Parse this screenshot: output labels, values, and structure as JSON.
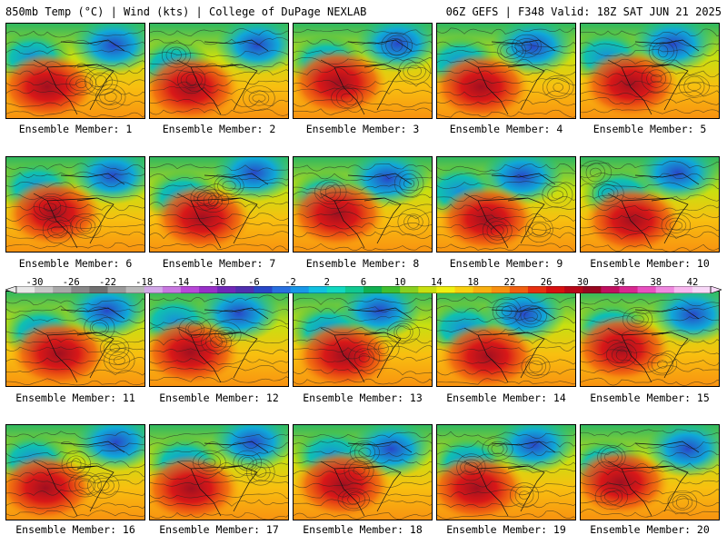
{
  "header": {
    "left_title": "850mb Temp (°C) | Wind (kts) | College of DuPage NEXLAB",
    "right_title": "06Z GEFS | F348 Valid: 18Z SAT JUN 21 2025"
  },
  "members": [
    {
      "label": "Ensemble Member: 1"
    },
    {
      "label": "Ensemble Member: 2"
    },
    {
      "label": "Ensemble Member: 3"
    },
    {
      "label": "Ensemble Member: 4"
    },
    {
      "label": "Ensemble Member: 5"
    },
    {
      "label": "Ensemble Member: 6"
    },
    {
      "label": "Ensemble Member: 7"
    },
    {
      "label": "Ensemble Member: 8"
    },
    {
      "label": "Ensemble Member: 9"
    },
    {
      "label": "Ensemble Member: 10"
    },
    {
      "label": "Ensemble Member: 11"
    },
    {
      "label": "Ensemble Member: 12"
    },
    {
      "label": "Ensemble Member: 13"
    },
    {
      "label": "Ensemble Member: 14"
    },
    {
      "label": "Ensemble Member: 15"
    },
    {
      "label": "Ensemble Member: 16"
    },
    {
      "label": "Ensemble Member: 17"
    },
    {
      "label": "Ensemble Member: 18"
    },
    {
      "label": "Ensemble Member: 19"
    },
    {
      "label": "Ensemble Member: 20"
    }
  ],
  "colorbar": {
    "tick_labels": [
      "-30",
      "-26",
      "-22",
      "-18",
      "-14",
      "-10",
      "-6",
      "-2",
      "2",
      "6",
      "10",
      "14",
      "18",
      "22",
      "26",
      "30",
      "34",
      "38",
      "42"
    ],
    "colors": [
      "#e8e8e8",
      "#c8c8c8",
      "#a8a8a8",
      "#888888",
      "#707070",
      "#9a9a9a",
      "#b8b8b8",
      "#d2a8e8",
      "#c878e0",
      "#b848d8",
      "#9830c8",
      "#7028b8",
      "#5030b0",
      "#2848c8",
      "#2870e0",
      "#1898e8",
      "#10c0e0",
      "#10d8c0",
      "#10c890",
      "#10b050",
      "#40c030",
      "#88d020",
      "#c8e010",
      "#f0f010",
      "#f8d010",
      "#f8b010",
      "#f89010",
      "#f06010",
      "#e83010",
      "#d81010",
      "#b80818",
      "#980820",
      "#c01060",
      "#d82890",
      "#e850c0",
      "#f088e0",
      "#f8b8f0",
      "#f8d8f8"
    ]
  }
}
